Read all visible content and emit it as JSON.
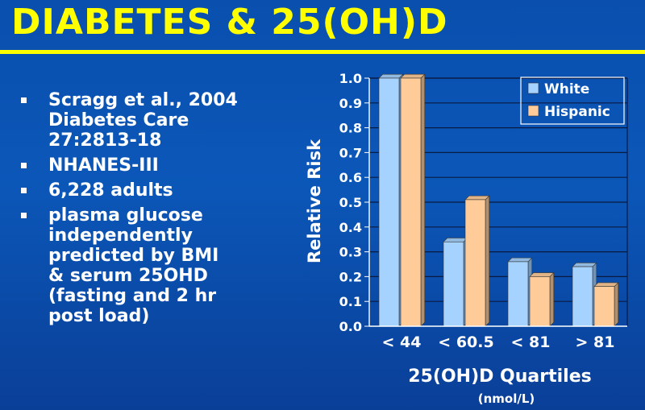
{
  "slide": {
    "title": "DIABETES & 25(OH)D",
    "bullets": [
      "Scragg et al., 2004\nDiabetes Care\n27:2813-18",
      "NHANES-III",
      "6,228 adults",
      "plasma glucose\nindependently\npredicted by BMI\n& serum 25OHD\n(fasting and 2 hr\npost load)"
    ]
  },
  "chart_data": {
    "type": "bar",
    "categories": [
      "< 44",
      "< 60.5",
      "< 81",
      "> 81"
    ],
    "series": [
      {
        "name": "White",
        "values": [
          1.0,
          0.34,
          0.26,
          0.24
        ],
        "color": "#a6d2ff"
      },
      {
        "name": "Hispanic",
        "values": [
          1.0,
          0.51,
          0.2,
          0.16
        ],
        "color": "#ffcc99"
      }
    ],
    "title": "",
    "xlabel": "25(OH)D Quartiles",
    "xlabel_sub": "(nmol/L)",
    "ylabel": "Relative Risk",
    "ylim": [
      0,
      1.0
    ],
    "yticks": [
      "0.0",
      "0.1",
      "0.2",
      "0.3",
      "0.4",
      "0.5",
      "0.6",
      "0.7",
      "0.8",
      "0.9",
      "1.0"
    ],
    "grid": true,
    "legend": "top-right",
    "three_d": true
  }
}
